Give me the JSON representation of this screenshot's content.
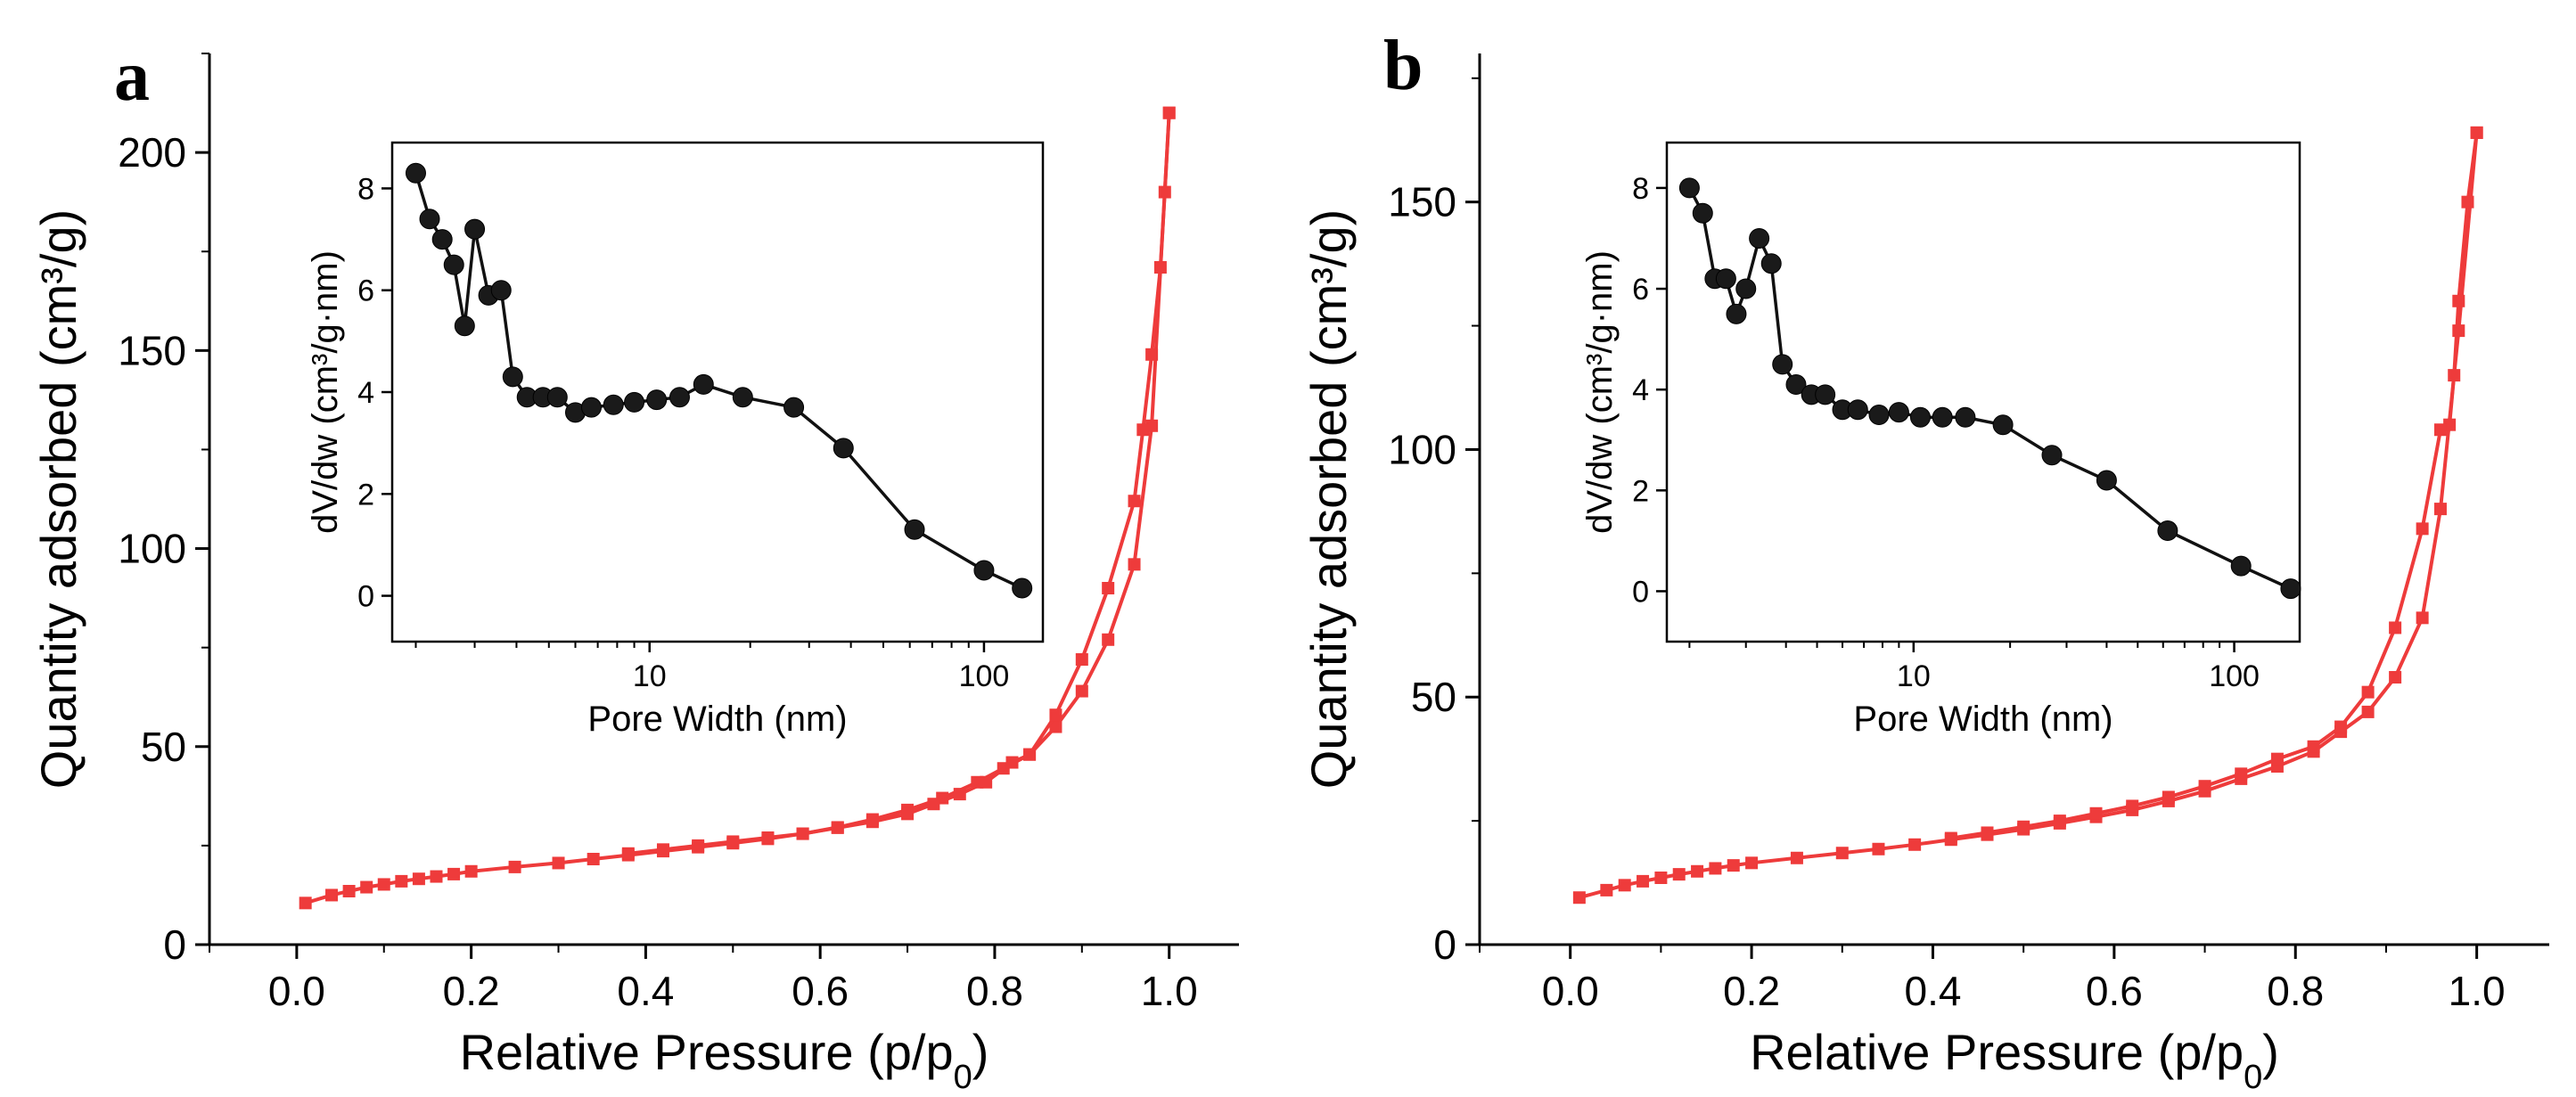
{
  "chart_data": [
    {
      "panel": "a",
      "type": "line",
      "xlabel": "Relative Pressure (p/p",
      "xlabel_sub": "0",
      "xlabel_end": ")",
      "ylabel": "Quantity adsorbed (cm³/g)",
      "xlim": [
        -0.1,
        1.08
      ],
      "ylim": [
        0,
        225
      ],
      "xticks": [
        0.0,
        0.2,
        0.4,
        0.6,
        0.8,
        1.0
      ],
      "xtick_labels": [
        "0.0",
        "0.2",
        "0.4",
        "0.6",
        "0.8",
        "1.0"
      ],
      "yticks": [
        0,
        50,
        100,
        150,
        200
      ],
      "ytick_labels": [
        "0",
        "50",
        "100",
        "150",
        "200"
      ],
      "color": "#ee3b3b",
      "series": [
        {
          "x": [
            0.01,
            0.04,
            0.06,
            0.08,
            0.1,
            0.12,
            0.14,
            0.16,
            0.18,
            0.2,
            0.25,
            0.3,
            0.34,
            0.38,
            0.42,
            0.46,
            0.5,
            0.54,
            0.58,
            0.62,
            0.66,
            0.7,
            0.74,
            0.78,
            0.81,
            0.84,
            0.87,
            0.9,
            0.93,
            0.96,
            0.98,
            1.0
          ],
          "y": [
            10.5,
            12.5,
            13.5,
            14.5,
            15.2,
            16.0,
            16.6,
            17.2,
            17.8,
            18.5,
            19.6,
            20.6,
            21.6,
            22.6,
            23.6,
            24.6,
            25.6,
            26.7,
            28.0,
            29.6,
            31.6,
            34.0,
            37.0,
            41.0,
            44.5,
            48.0,
            55.0,
            64.0,
            77.0,
            96.0,
            131.0,
            210.0
          ]
        },
        {
          "x": [
            1.0,
            0.995,
            0.99,
            0.98,
            0.97,
            0.96,
            0.93,
            0.9,
            0.87,
            0.84,
            0.82,
            0.79,
            0.76,
            0.73,
            0.7,
            0.66,
            0.62,
            0.58,
            0.54,
            0.5,
            0.46,
            0.42,
            0.38
          ],
          "y": [
            210.0,
            190.0,
            171.0,
            149.0,
            130.0,
            112.0,
            90.0,
            72.0,
            58.0,
            48.0,
            46.0,
            41.0,
            38.0,
            35.5,
            33.0,
            31.0,
            29.5,
            28.0,
            27.0,
            26.0,
            25.0,
            24.0,
            23.0
          ]
        }
      ],
      "inset": {
        "type": "line",
        "xscale": "log",
        "xlabel": "Pore Width (nm)",
        "ylabel": "dV/dw (cm³/g·nm)",
        "xlim": [
          1.7,
          150
        ],
        "ylim": [
          -0.9,
          8.9
        ],
        "xticks": [
          10,
          100
        ],
        "xtick_labels": [
          "10",
          "100"
        ],
        "yticks": [
          0,
          2,
          4,
          6,
          8
        ],
        "ytick_labels": [
          "0",
          "2",
          "4",
          "6",
          "8"
        ],
        "color": "#111111",
        "x": [
          2.0,
          2.2,
          2.4,
          2.6,
          2.8,
          3.0,
          3.3,
          3.6,
          3.9,
          4.3,
          4.8,
          5.3,
          6.0,
          6.7,
          7.8,
          9.0,
          10.5,
          12.3,
          14.5,
          19.0,
          27.0,
          38.0,
          62.0,
          100.0,
          130.0
        ],
        "y": [
          8.3,
          7.4,
          7.0,
          6.5,
          5.3,
          7.2,
          5.9,
          6.0,
          4.3,
          3.9,
          3.9,
          3.9,
          3.6,
          3.7,
          3.75,
          3.8,
          3.85,
          3.9,
          4.15,
          3.9,
          3.7,
          2.9,
          1.3,
          0.5,
          0.15
        ]
      }
    },
    {
      "panel": "b",
      "type": "line",
      "xlabel": "Relative Pressure (p/p",
      "xlabel_sub": "0",
      "xlabel_end": ")",
      "ylabel": "Quantity adsorbed (cm³/g)",
      "xlim": [
        -0.1,
        1.08
      ],
      "ylim": [
        0,
        180
      ],
      "xticks": [
        0.0,
        0.2,
        0.4,
        0.6,
        0.8,
        1.0
      ],
      "xtick_labels": [
        "0.0",
        "0.2",
        "0.4",
        "0.6",
        "0.8",
        "1.0"
      ],
      "yticks": [
        0,
        50,
        100,
        150
      ],
      "ytick_labels": [
        "0",
        "50",
        "100",
        "150"
      ],
      "color": "#ee3b3b",
      "series": [
        {
          "x": [
            0.01,
            0.04,
            0.06,
            0.08,
            0.1,
            0.12,
            0.14,
            0.16,
            0.18,
            0.2,
            0.25,
            0.3,
            0.34,
            0.38,
            0.42,
            0.46,
            0.5,
            0.54,
            0.58,
            0.62,
            0.66,
            0.7,
            0.74,
            0.78,
            0.82,
            0.85,
            0.88,
            0.91,
            0.94,
            0.96,
            0.98,
            1.0
          ],
          "y": [
            9.5,
            11.0,
            12.0,
            12.8,
            13.5,
            14.2,
            14.8,
            15.4,
            16.0,
            16.5,
            17.5,
            18.5,
            19.3,
            20.2,
            21.2,
            22.2,
            23.3,
            24.5,
            25.8,
            27.2,
            29.0,
            31.0,
            33.5,
            36.0,
            39.0,
            43.0,
            47.0,
            54.0,
            66.0,
            88.0,
            124.0,
            164.0
          ]
        },
        {
          "x": [
            1.0,
            0.99,
            0.98,
            0.975,
            0.97,
            0.96,
            0.94,
            0.91,
            0.88,
            0.85,
            0.82,
            0.78,
            0.74,
            0.7,
            0.66,
            0.62,
            0.58,
            0.54,
            0.5,
            0.46,
            0.42
          ],
          "y": [
            164.0,
            150.0,
            130.0,
            115.0,
            105.0,
            104.0,
            84.0,
            64.0,
            51.0,
            44.0,
            40.0,
            37.5,
            34.5,
            32.0,
            29.8,
            28.0,
            26.5,
            25.0,
            23.8,
            22.6,
            21.5
          ]
        }
      ],
      "inset": {
        "type": "line",
        "xscale": "log",
        "xlabel": "Pore Width (nm)",
        "ylabel": "dV/dw (cm³/g·nm)",
        "xlim": [
          1.7,
          160
        ],
        "ylim": [
          -1.0,
          8.9
        ],
        "xticks": [
          10,
          100
        ],
        "xtick_labels": [
          "10",
          "100"
        ],
        "yticks": [
          0,
          2,
          4,
          6,
          8
        ],
        "ytick_labels": [
          "0",
          "2",
          "4",
          "6",
          "8"
        ],
        "color": "#111111",
        "x": [
          2.0,
          2.2,
          2.4,
          2.6,
          2.8,
          3.0,
          3.3,
          3.6,
          3.9,
          4.3,
          4.8,
          5.3,
          6.0,
          6.7,
          7.8,
          9.0,
          10.5,
          12.3,
          14.5,
          19.0,
          27.0,
          40.0,
          62.0,
          105.0,
          150.0
        ],
        "y": [
          8.0,
          7.5,
          6.2,
          6.2,
          5.5,
          6.0,
          7.0,
          6.5,
          4.5,
          4.1,
          3.9,
          3.9,
          3.6,
          3.6,
          3.5,
          3.55,
          3.45,
          3.45,
          3.45,
          3.3,
          2.7,
          2.2,
          1.2,
          0.5,
          0.05
        ]
      }
    }
  ]
}
